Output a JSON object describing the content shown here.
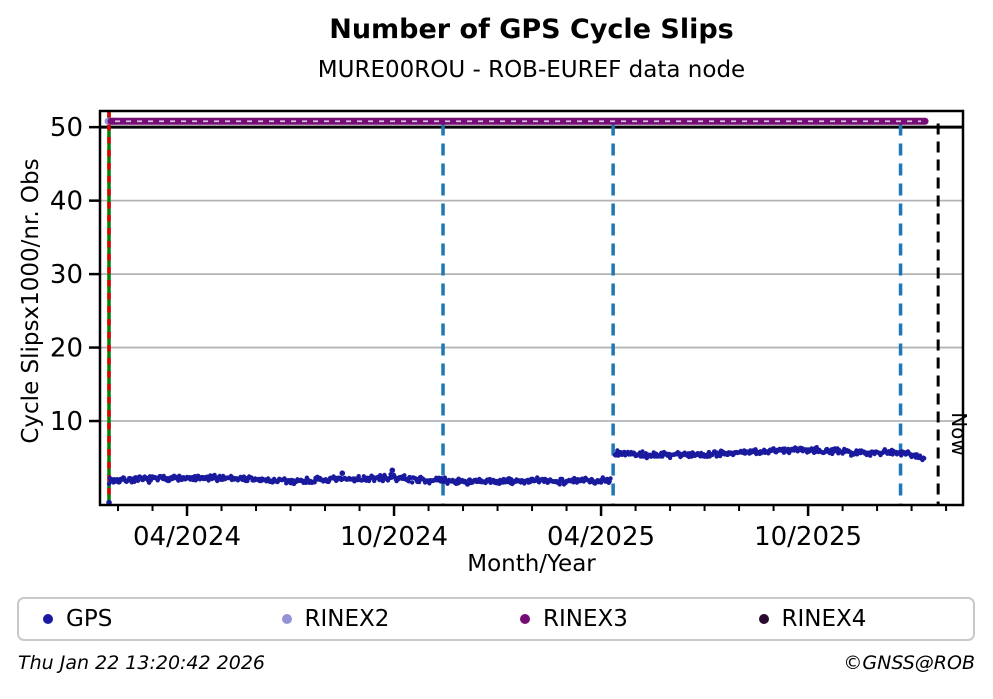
{
  "chart_data": {
    "type": "scatter",
    "title": "Number of GPS Cycle Slips",
    "subtitle": "MURE00ROU - ROB-EUREF data node",
    "xlabel": "Month/Year",
    "ylabel": "Cycle Slipsx1000/nr. Obs",
    "x_unit": "fractional months since 2024-01-01",
    "xlim": [
      0.478,
      25.49
    ],
    "ylim": [
      -1.43,
      52.2
    ],
    "grid_on": true,
    "grid_color": "#b4b4b4",
    "y50_line_color": "#000000",
    "yticks": [
      {
        "v": 10,
        "label": "10"
      },
      {
        "v": 20,
        "label": "20"
      },
      {
        "v": 30,
        "label": "30"
      },
      {
        "v": 40,
        "label": "40"
      },
      {
        "v": 50,
        "label": "50"
      }
    ],
    "xticks_major": [
      {
        "m": 3,
        "label": "04/2024"
      },
      {
        "m": 9,
        "label": "10/2024"
      },
      {
        "m": 15,
        "label": "04/2025"
      },
      {
        "m": 21,
        "label": "10/2025"
      }
    ],
    "xticks_minor_months": [
      1,
      2,
      3,
      4,
      5,
      6,
      7,
      8,
      9,
      10,
      11,
      12,
      13,
      14,
      15,
      16,
      17,
      18,
      19,
      20,
      21,
      22,
      23,
      24,
      25
    ],
    "series": {
      "gps": {
        "name": "GPS",
        "color": "#1a1a9e",
        "marker_radius": 2.2,
        "points_per_month": 40,
        "spread": 0.5,
        "mean_control_points": [
          [
            0.74,
            1.9
          ],
          [
            1.2,
            2.0
          ],
          [
            2.0,
            2.1
          ],
          [
            2.6,
            2.3
          ],
          [
            3.0,
            2.1
          ],
          [
            3.6,
            2.2
          ],
          [
            4.2,
            2.3
          ],
          [
            4.8,
            2.1
          ],
          [
            5.4,
            1.9
          ],
          [
            6.0,
            1.8
          ],
          [
            6.6,
            1.9
          ],
          [
            7.2,
            2.0
          ],
          [
            7.8,
            2.1
          ],
          [
            8.4,
            2.2
          ],
          [
            9.0,
            2.3
          ],
          [
            9.6,
            2.1
          ],
          [
            10.2,
            1.9
          ],
          [
            10.8,
            1.8
          ],
          [
            11.4,
            1.7
          ],
          [
            12.0,
            1.8
          ],
          [
            12.6,
            1.8
          ],
          [
            13.2,
            1.9
          ],
          [
            13.8,
            1.8
          ],
          [
            14.4,
            1.9
          ],
          [
            15.0,
            1.9
          ],
          [
            15.3,
            2.0
          ]
        ],
        "mean_control_points_after_jump": [
          [
            15.4,
            5.7
          ],
          [
            16.0,
            5.5
          ],
          [
            16.6,
            5.3
          ],
          [
            17.2,
            5.5
          ],
          [
            17.8,
            5.4
          ],
          [
            18.4,
            5.6
          ],
          [
            19.0,
            5.7
          ],
          [
            19.6,
            5.8
          ],
          [
            20.2,
            6.0
          ],
          [
            20.8,
            6.2
          ],
          [
            21.4,
            6.0
          ],
          [
            22.0,
            5.8
          ],
          [
            22.6,
            5.7
          ],
          [
            23.2,
            5.8
          ],
          [
            23.8,
            5.7
          ],
          [
            24.1,
            5.4
          ],
          [
            24.39,
            4.9
          ]
        ],
        "outliers": [
          [
            7.5,
            2.9
          ],
          [
            8.95,
            3.3
          ],
          [
            0.74,
            -1.1
          ]
        ]
      },
      "rinex3": {
        "name": "RINEX3",
        "color": "#750d75",
        "tick_overlay_color": "#d9c2e3",
        "value": 50.8,
        "from_m": 0.74,
        "to_m": 24.39,
        "thickness": 7
      },
      "rinex2": {
        "name": "RINEX2",
        "color": "#9393d6",
        "value": 50.8,
        "from_m": 0.74,
        "to_m": 0.95
      }
    },
    "annotations": {
      "start_line": {
        "m": 0.739,
        "color": "#008000",
        "overlay_color": "#dc0000"
      },
      "event_lines": {
        "color": "#1f77b4",
        "months": [
          10.42,
          15.35,
          23.68
        ],
        "top_v": 50.5
      },
      "now_line": {
        "m": 24.77,
        "color": "#000000",
        "label": "Now",
        "top_v": 50.5
      }
    }
  },
  "legend": {
    "items": [
      {
        "label": "GPS",
        "color": "#1a1a9e"
      },
      {
        "label": "RINEX2",
        "color": "#9393d6"
      },
      {
        "label": "RINEX3",
        "color": "#750d75"
      },
      {
        "label": "RINEX4",
        "color": "#2a0a2e"
      }
    ]
  },
  "footer": {
    "timestamp": "Thu Jan 22 13:20:42 2026",
    "copyright": "©GNSS@ROB"
  }
}
